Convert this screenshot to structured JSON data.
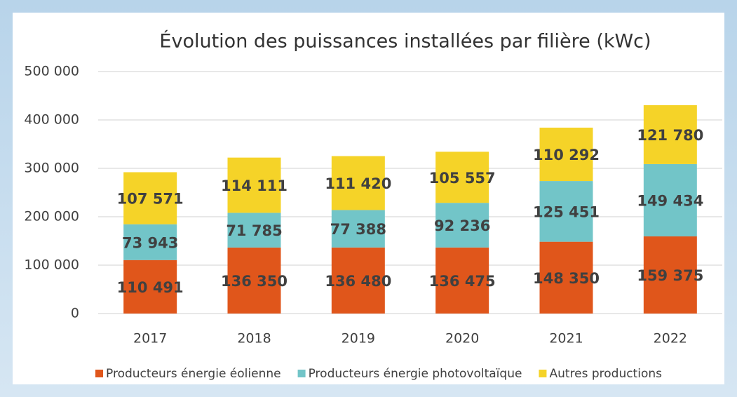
{
  "chart_data": {
    "type": "stacked_bar",
    "title": "Évolution des puissances installées par filière (kWc)",
    "categories": [
      "2017",
      "2018",
      "2019",
      "2020",
      "2021",
      "2022"
    ],
    "series": [
      {
        "name": "Producteurs énergie éolienne",
        "color": "#e0561b",
        "values": [
          110491,
          136350,
          136480,
          136475,
          148350,
          159375
        ],
        "value_labels": [
          "110 491",
          "136 350",
          "136 480",
          "136 475",
          "148 350",
          "159 375"
        ]
      },
      {
        "name": "Producteurs énergie photovoltaïque",
        "color": "#72c5c8",
        "values": [
          73943,
          71785,
          77388,
          92236,
          125451,
          149434
        ],
        "value_labels": [
          "73 943",
          "71 785",
          "77 388",
          "92 236",
          "125 451",
          "149 434"
        ]
      },
      {
        "name": "Autres productions",
        "color": "#f5d328",
        "values": [
          107571,
          114111,
          111420,
          105557,
          110292,
          121780
        ],
        "value_labels": [
          "107 571",
          "114 111",
          "111 420",
          "105 557",
          "110 292",
          "121 780"
        ]
      }
    ],
    "ylim": [
      0,
      500000
    ],
    "yticks": [
      {
        "value": 0,
        "label": "0"
      },
      {
        "value": 100000,
        "label": "100 000"
      },
      {
        "value": 200000,
        "label": "200 000"
      },
      {
        "value": 300000,
        "label": "300 000"
      },
      {
        "value": 400000,
        "label": "400 000"
      },
      {
        "value": 500000,
        "label": "500 000"
      }
    ],
    "grid": true,
    "legend": "bottom"
  }
}
